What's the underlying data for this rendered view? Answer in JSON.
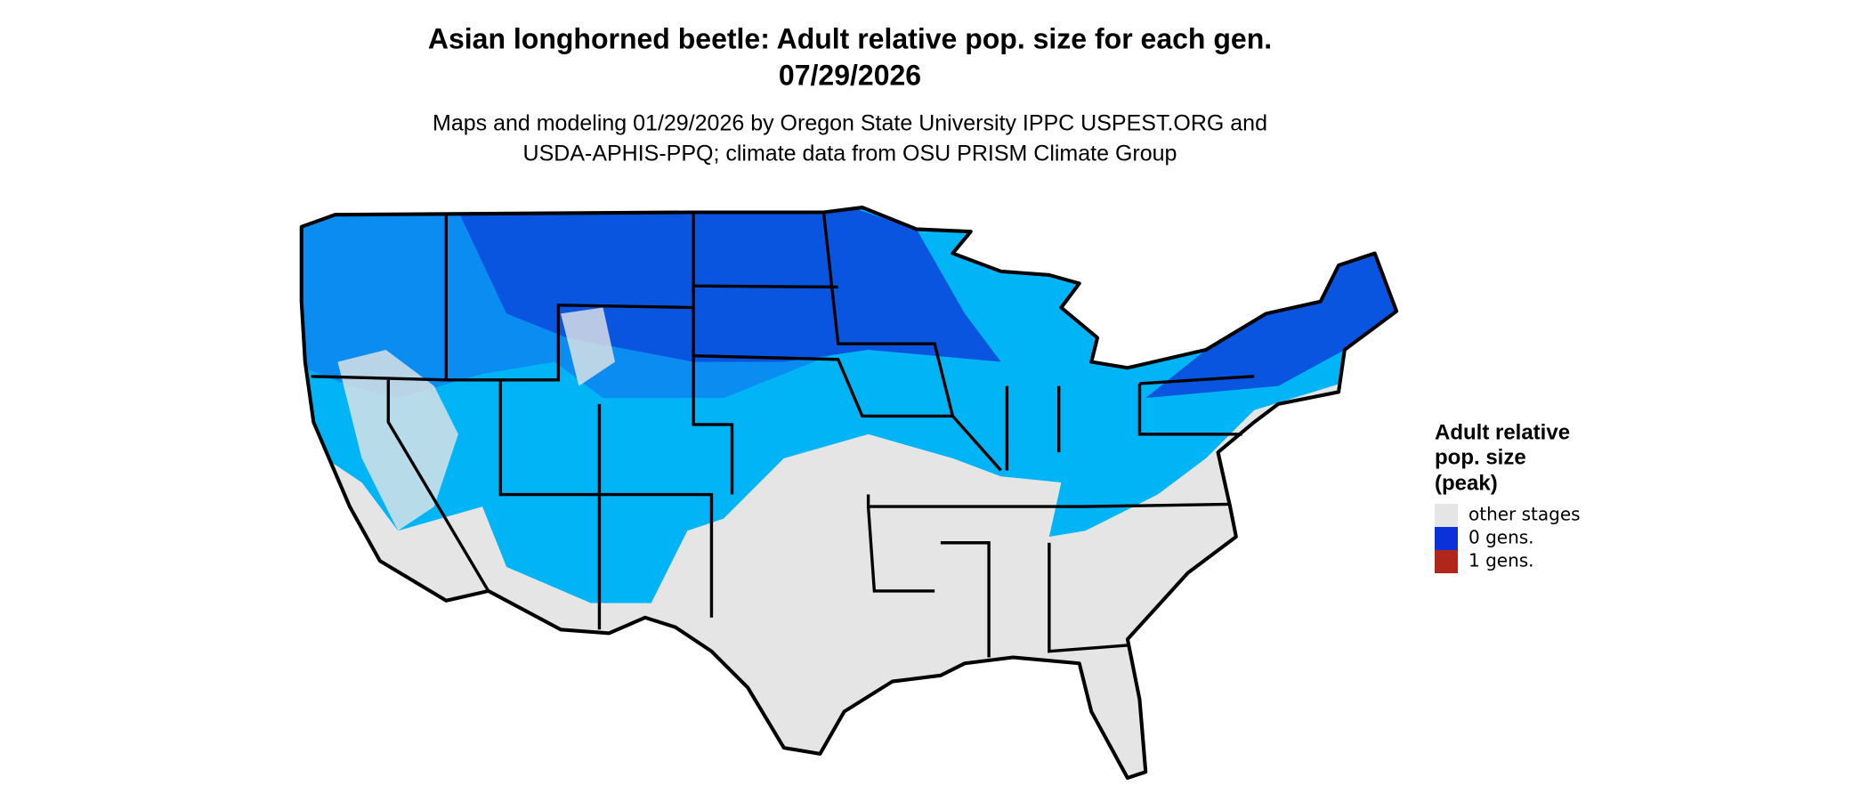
{
  "title": [
    "Asian longhorned beetle: Adult relative pop. size for each gen.",
    "07/29/2026"
  ],
  "subtitle": [
    "Maps and modeling 01/29/2026 by Oregon State University IPPC USPEST.ORG and",
    "USDA-APHIS-PPQ; climate data from OSU PRISM Climate Group"
  ],
  "legend": {
    "title": [
      "Adult relative",
      "pop. size",
      "(peak)"
    ],
    "items": [
      {
        "label": "other stages",
        "color": "#e5e5e5"
      },
      {
        "label": "0 gens.",
        "color": "#0a32d8"
      },
      {
        "label": "1 gens.",
        "color": "#b0261a"
      }
    ]
  }
}
